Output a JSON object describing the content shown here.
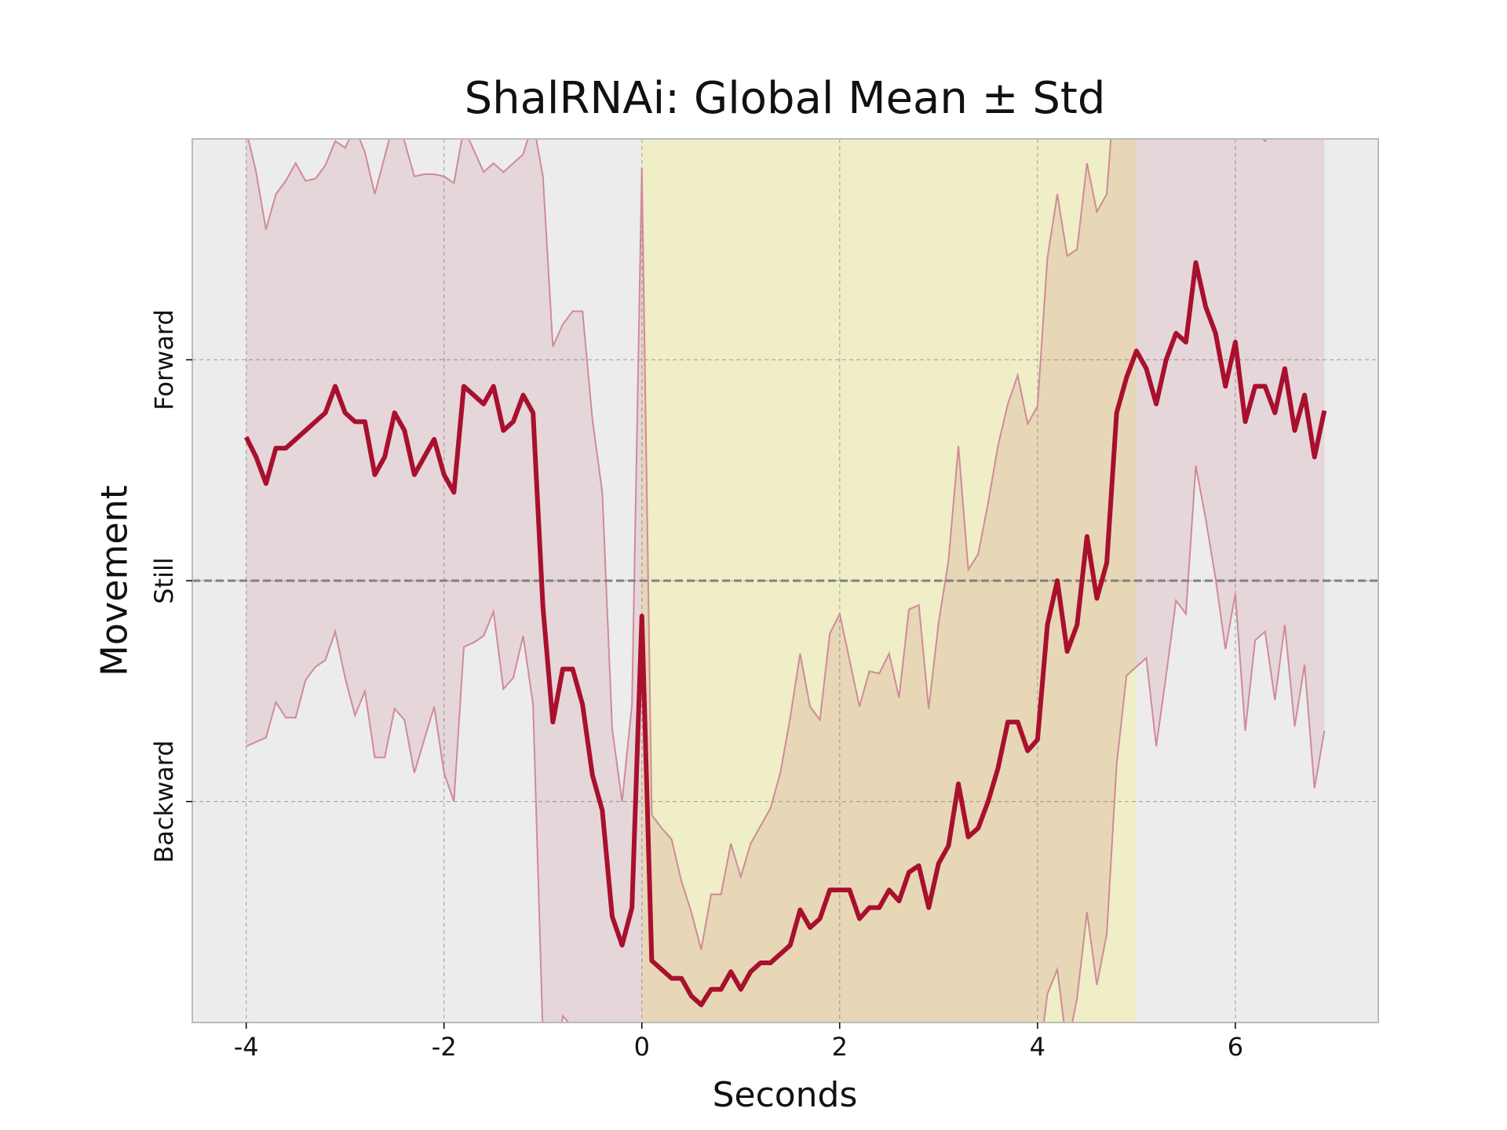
{
  "chart_data": {
    "type": "line",
    "title": "ShalRNAi: Global Mean ± Std",
    "xlabel": "Seconds",
    "ylabel": "Movement",
    "x": [
      -4.0,
      -3.9,
      -3.8,
      -3.7,
      -3.6,
      -3.5,
      -3.4,
      -3.3,
      -3.2,
      -3.1,
      -3.0,
      -2.9,
      -2.8,
      -2.7,
      -2.6,
      -2.5,
      -2.4,
      -2.3,
      -2.2,
      -2.1,
      -2.0,
      -1.9,
      -1.8,
      -1.7,
      -1.6,
      -1.5,
      -1.4,
      -1.3,
      -1.2,
      -1.1,
      -1.0,
      -0.9,
      -0.8,
      -0.7,
      -0.6,
      -0.5,
      -0.4,
      -0.3,
      -0.2,
      -0.1,
      0.0,
      0.1,
      0.2,
      0.3,
      0.4,
      0.5,
      0.6,
      0.7,
      0.8,
      0.9,
      1.0,
      1.1,
      1.2,
      1.3,
      1.4,
      1.5,
      1.6,
      1.7,
      1.8,
      1.9,
      2.0,
      2.1,
      2.2,
      2.3,
      2.4,
      2.5,
      2.6,
      2.7,
      2.8,
      2.9,
      3.0,
      3.1,
      3.2,
      3.3,
      3.4,
      3.5,
      3.6,
      3.7,
      3.8,
      3.9,
      4.0,
      4.1,
      4.2,
      4.3,
      4.4,
      4.5,
      4.6,
      4.7,
      4.8,
      4.9,
      5.0,
      5.1,
      5.2,
      5.3,
      5.4,
      5.5,
      5.6,
      5.7,
      5.8,
      5.9,
      6.0,
      6.1,
      6.2,
      6.3,
      6.4,
      6.5,
      6.6,
      6.7,
      6.8,
      6.9
    ],
    "values": [
      0.65,
      0.56,
      0.44,
      0.6,
      0.6,
      0.64,
      0.68,
      0.72,
      0.76,
      0.88,
      0.76,
      0.72,
      0.72,
      0.48,
      0.56,
      0.76,
      0.68,
      0.48,
      0.56,
      0.64,
      0.48,
      0.4,
      0.88,
      0.84,
      0.8,
      0.88,
      0.68,
      0.72,
      0.84,
      0.76,
      -0.12,
      -0.64,
      -0.4,
      -0.4,
      -0.56,
      -0.88,
      -1.04,
      -1.52,
      -1.65,
      -1.48,
      -0.16,
      -1.72,
      -1.76,
      -1.8,
      -1.8,
      -1.88,
      -1.92,
      -1.85,
      -1.85,
      -1.77,
      -1.85,
      -1.77,
      -1.73,
      -1.73,
      -1.69,
      -1.65,
      -1.49,
      -1.57,
      -1.53,
      -1.4,
      -1.4,
      -1.4,
      -1.53,
      -1.48,
      -1.48,
      -1.4,
      -1.45,
      -1.32,
      -1.29,
      -1.48,
      -1.28,
      -1.2,
      -0.92,
      -1.16,
      -1.12,
      -1.0,
      -0.85,
      -0.64,
      -0.64,
      -0.77,
      -0.72,
      -0.2,
      0.0,
      -0.32,
      -0.2,
      0.2,
      -0.08,
      0.08,
      0.76,
      0.92,
      1.04,
      0.96,
      0.8,
      1.0,
      1.12,
      1.08,
      1.44,
      1.24,
      1.12,
      0.88,
      1.08,
      0.72,
      0.88,
      0.88,
      0.76,
      0.96,
      0.68,
      0.84,
      0.56,
      0.77
    ],
    "upper": [
      2.04,
      1.85,
      1.59,
      1.75,
      1.81,
      1.89,
      1.81,
      1.82,
      1.88,
      1.99,
      1.96,
      2.05,
      1.94,
      1.75,
      1.92,
      2.09,
      1.99,
      1.83,
      1.84,
      1.84,
      1.83,
      1.8,
      2.05,
      1.95,
      1.85,
      1.89,
      1.85,
      1.89,
      1.93,
      2.08,
      1.83,
      1.06,
      1.16,
      1.22,
      1.22,
      0.73,
      0.4,
      -0.67,
      -1.0,
      -0.56,
      1.87,
      -1.06,
      -1.12,
      -1.17,
      -1.36,
      -1.5,
      -1.67,
      -1.42,
      -1.42,
      -1.19,
      -1.34,
      -1.19,
      -1.11,
      -1.03,
      -0.87,
      -0.62,
      -0.33,
      -0.57,
      -0.63,
      -0.24,
      -0.15,
      -0.36,
      -0.57,
      -0.41,
      -0.42,
      -0.33,
      -0.53,
      -0.13,
      -0.11,
      -0.58,
      -0.19,
      0.09,
      0.61,
      0.05,
      0.12,
      0.35,
      0.61,
      0.8,
      0.93,
      0.71,
      0.79,
      1.46,
      1.75,
      1.47,
      1.5,
      1.89,
      1.67,
      1.75,
      2.35,
      2.27,
      2.47,
      2.27,
      2.35,
      2.43,
      2.33,
      2.31,
      2.37,
      2.2,
      2.23,
      2.07,
      2.22,
      2.12,
      2.03,
      1.99,
      2.07,
      2.12,
      2.03,
      2.06,
      2.06,
      2.21
    ],
    "lower": [
      -0.75,
      -0.73,
      -0.71,
      -0.55,
      -0.62,
      -0.62,
      -0.45,
      -0.39,
      -0.36,
      -0.23,
      -0.44,
      -0.61,
      -0.5,
      -0.8,
      -0.8,
      -0.58,
      -0.63,
      -0.87,
      -0.72,
      -0.57,
      -0.87,
      -1.0,
      -0.3,
      -0.28,
      -0.25,
      -0.14,
      -0.49,
      -0.44,
      -0.25,
      -0.56,
      -2.07,
      -2.34,
      -1.97,
      -2.02,
      -2.34,
      -2.49,
      -2.48,
      -2.37,
      -2.3,
      -2.4,
      -2.2,
      -2.38,
      -2.4,
      -2.43,
      -2.24,
      -2.26,
      -2.17,
      -2.27,
      -2.27,
      -2.34,
      -2.35,
      -2.34,
      -2.35,
      -2.43,
      -2.5,
      -2.67,
      -2.64,
      -2.56,
      -2.42,
      -2.57,
      -2.66,
      -2.44,
      -2.48,
      -2.55,
      -2.54,
      -2.47,
      -2.36,
      -2.52,
      -2.47,
      -2.38,
      -2.38,
      -2.5,
      -2.45,
      -2.38,
      -2.36,
      -2.35,
      -2.3,
      -2.08,
      -2.21,
      -2.24,
      -2.23,
      -1.87,
      -1.76,
      -2.12,
      -1.89,
      -1.5,
      -1.83,
      -1.6,
      -0.83,
      -0.43,
      -0.39,
      -0.35,
      -0.75,
      -0.43,
      -0.09,
      -0.15,
      0.52,
      0.28,
      0.01,
      -0.31,
      -0.06,
      -0.68,
      -0.27,
      -0.23,
      -0.54,
      -0.2,
      -0.66,
      -0.38,
      -0.94,
      -0.68
    ],
    "color": "#a8102e",
    "band_color": "#a8102e",
    "band_edge_color": "#d08a9a",
    "span": [
      0,
      5
    ],
    "span_color": "#f2f0a8",
    "reference_line": 0,
    "xlim": [
      -4.545,
      7.445
    ],
    "ylim": [
      -2,
      2
    ],
    "xticks": [
      -4,
      -2,
      0,
      2,
      4,
      6
    ],
    "yticks": [
      {
        "value": -1,
        "label": "Backward"
      },
      {
        "value": 0,
        "label": "Still"
      },
      {
        "value": 1,
        "label": "Forward"
      }
    ],
    "grid": true
  }
}
